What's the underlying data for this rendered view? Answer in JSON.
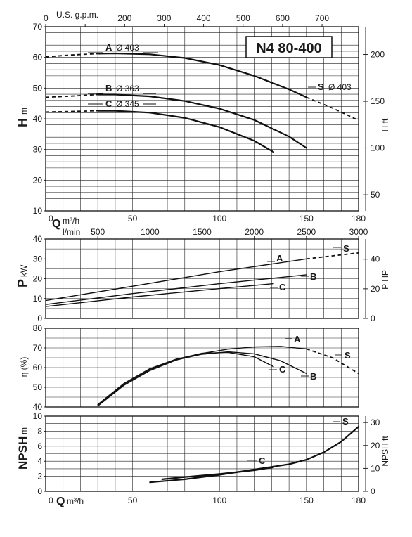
{
  "title": "N4 80-400",
  "axes": {
    "q_m3h_label": "Q",
    "q_m3h_unit": "m³/h",
    "q_lmin_unit": "l/min",
    "q_usgpm_label": "U.S. g.p.m.",
    "q_m3h_ticks": [
      "0",
      "50",
      "100",
      "150",
      "180"
    ],
    "q_lmin_ticks": [
      "500",
      "1000",
      "1500",
      "2000",
      "2500",
      "3000"
    ],
    "q_usgpm_ticks": [
      "0",
      "100",
      "200",
      "300",
      "400",
      "500",
      "600",
      "700"
    ]
  },
  "chart_data": [
    {
      "type": "line",
      "panel": "head",
      "ylabel_main": "H",
      "ylabel_unit": "m",
      "y2label": "H ft",
      "ylim": [
        10,
        70
      ],
      "xlim": [
        0,
        180
      ],
      "y_ticks": [
        "10",
        "20",
        "30",
        "40",
        "50",
        "60",
        "70"
      ],
      "y2_ticks": [
        "50",
        "100",
        "150",
        "200"
      ],
      "grid": true,
      "series": [
        {
          "name": "A",
          "diameter": "Ø 403",
          "dashed": {
            "x": [
              0,
              15,
              30
            ],
            "y": [
              60.2,
              60.8,
              61.2
            ]
          },
          "x": [
            30,
            40,
            60,
            80,
            100,
            120,
            140,
            150
          ],
          "y": [
            61.2,
            61.3,
            61,
            59.8,
            57.5,
            54,
            49.6,
            47
          ],
          "extension": {
            "x": [
              150,
              165,
              180
            ],
            "y": [
              47,
              43.5,
              39.5
            ]
          }
        },
        {
          "name": "B",
          "diameter": "Ø 363",
          "dashed": {
            "x": [
              0,
              15,
              30
            ],
            "y": [
              47,
              47.4,
              47.9
            ]
          },
          "x": [
            30,
            40,
            60,
            80,
            100,
            120,
            140,
            150
          ],
          "y": [
            47.9,
            47.9,
            47.3,
            45.8,
            43.3,
            39.6,
            34.2,
            30.5
          ]
        },
        {
          "name": "C",
          "diameter": "Ø 345",
          "dashed": {
            "x": [
              0,
              15,
              30
            ],
            "y": [
              42.2,
              42.4,
              42.6
            ]
          },
          "x": [
            30,
            40,
            60,
            80,
            100,
            120,
            131
          ],
          "y": [
            42.6,
            42.6,
            42,
            40.3,
            37.3,
            32.8,
            29.2
          ]
        }
      ],
      "labels": [
        "A",
        "B",
        "C",
        "S",
        "Ø 403"
      ]
    },
    {
      "type": "line",
      "panel": "power",
      "ylabel_main": "P",
      "ylabel_unit": "kW",
      "y2label": "P HP",
      "ylim": [
        0,
        40
      ],
      "xlim": [
        0,
        180
      ],
      "y_ticks": [
        "0",
        "10",
        "20",
        "30",
        "40"
      ],
      "y2_ticks": [
        "0",
        "20",
        "40"
      ],
      "grid": true,
      "series": [
        {
          "name": "A",
          "x": [
            0,
            50,
            100,
            150
          ],
          "y": [
            9,
            16.2,
            23.5,
            30
          ],
          "extension": {
            "x": [
              150,
              165,
              180
            ],
            "y": [
              30,
              31.5,
              33
            ]
          }
        },
        {
          "name": "B",
          "x": [
            0,
            50,
            100,
            150
          ],
          "y": [
            7,
            12.5,
            17.5,
            22
          ]
        },
        {
          "name": "C",
          "x": [
            0,
            50,
            100,
            131
          ],
          "y": [
            6,
            10.8,
            15,
            17.5
          ]
        }
      ],
      "labels": [
        "A",
        "B",
        "C",
        "S"
      ]
    },
    {
      "type": "line",
      "panel": "efficiency",
      "ylabel_main": "η (%)",
      "ylim": [
        40,
        80
      ],
      "xlim": [
        0,
        180
      ],
      "y_ticks": [
        "40",
        "50",
        "60",
        "70",
        "80"
      ],
      "grid": true,
      "series": [
        {
          "name": "A",
          "x": [
            30,
            45,
            60,
            75,
            90,
            105,
            120,
            135,
            150
          ],
          "y": [
            40.5,
            51,
            58.5,
            63.8,
            67.2,
            69.4,
            70.5,
            70.8,
            69.5
          ],
          "extension": {
            "x": [
              150,
              165,
              180
            ],
            "y": [
              69.5,
              65,
              57
            ]
          }
        },
        {
          "name": "B",
          "x": [
            30,
            45,
            60,
            75,
            90,
            105,
            120,
            135,
            150
          ],
          "y": [
            41,
            51.5,
            59,
            64,
            66.8,
            68,
            67,
            63.5,
            57
          ]
        },
        {
          "name": "C",
          "x": [
            30,
            45,
            60,
            75,
            90,
            105,
            120,
            131
          ],
          "y": [
            41.3,
            52,
            59.5,
            64.3,
            67.3,
            67.7,
            65.5,
            60.5
          ]
        }
      ],
      "labels": [
        "A",
        "B",
        "C",
        "S"
      ]
    },
    {
      "type": "line",
      "panel": "npsh",
      "ylabel_main": "NPSH",
      "ylabel_unit": "m",
      "y2label": "NPSH ft",
      "ylim": [
        0,
        10
      ],
      "xlim": [
        0,
        180
      ],
      "y_ticks": [
        "0",
        "2",
        "4",
        "6",
        "8",
        "10"
      ],
      "y2_ticks": [
        "0",
        "10",
        "20",
        "30"
      ],
      "grid": true,
      "series": [
        {
          "name": "S",
          "x": [
            60,
            80,
            100,
            120,
            140,
            150,
            160,
            170,
            180
          ],
          "y": [
            1.2,
            1.6,
            2.2,
            2.9,
            3.6,
            4.2,
            5.2,
            6.6,
            8.6
          ]
        },
        {
          "name": "C",
          "x": [
            67,
            80,
            100,
            120,
            131
          ],
          "y": [
            1.6,
            1.9,
            2.3,
            2.8,
            3.2
          ]
        }
      ],
      "labels": [
        "S",
        "C"
      ]
    }
  ]
}
